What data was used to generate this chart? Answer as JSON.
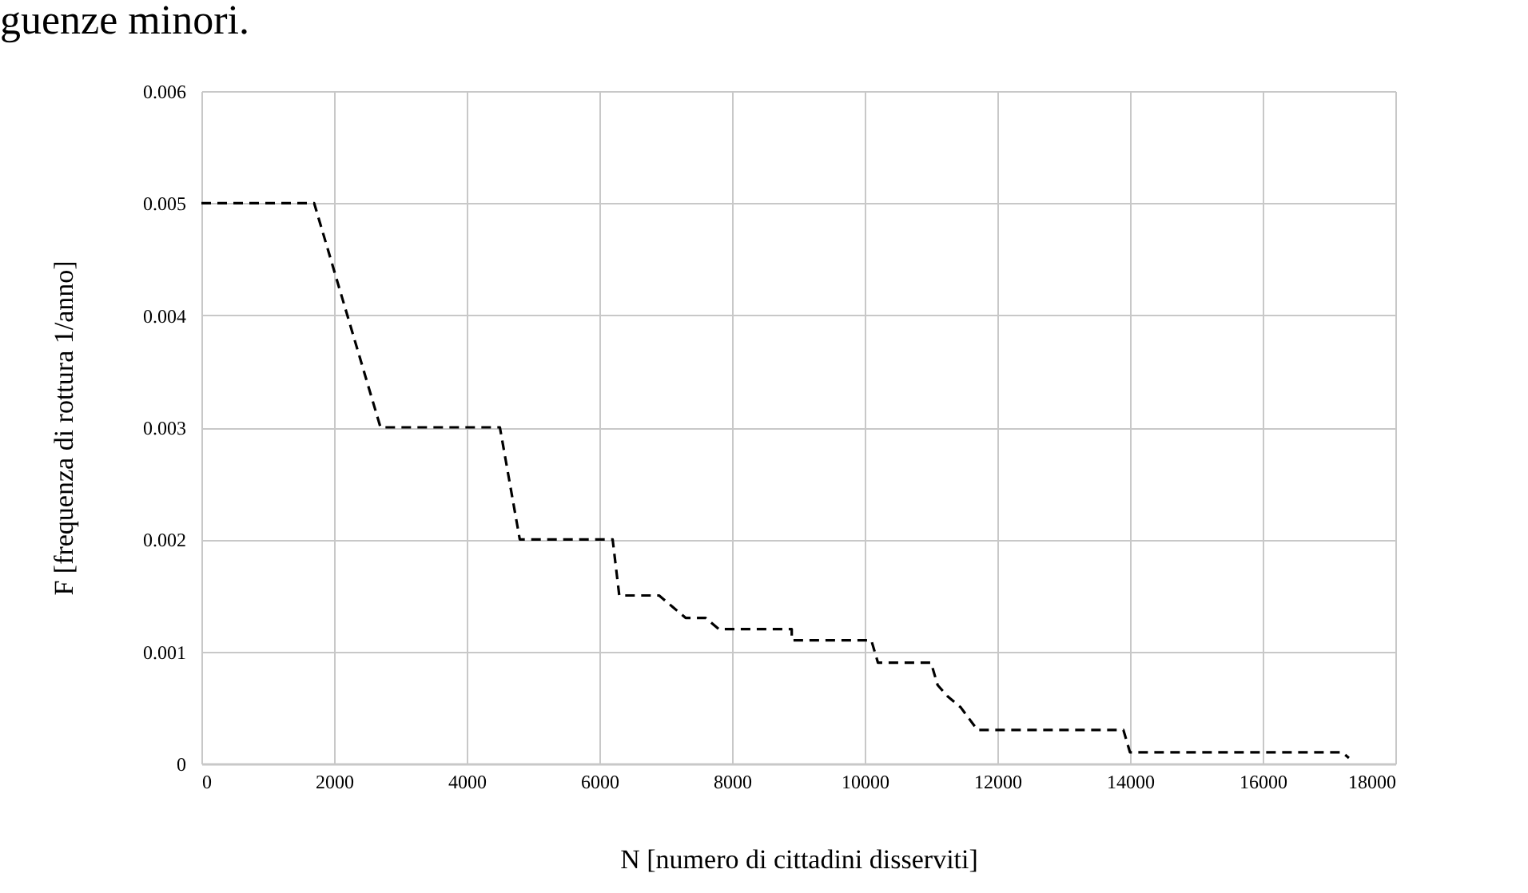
{
  "chart_data": {
    "type": "line",
    "xlabel": "N [numero di cittadini disserviti]",
    "ylabel": "F [frequenza di rottura 1/anno]",
    "annotations": [
      "guenze minori."
    ],
    "x": [
      0,
      1700,
      2700,
      4500,
      4800,
      6200,
      6300,
      6900,
      7100,
      7300,
      7600,
      7800,
      8900,
      8900,
      10100,
      10200,
      11000,
      11100,
      11250,
      11450,
      11700,
      13900,
      14000,
      17200,
      17300
    ],
    "series": [
      {
        "color": "#000000",
        "line_style": "dashed",
        "values": [
          0.005,
          0.005,
          0.003,
          0.003,
          0.002,
          0.002,
          0.0015,
          0.0015,
          0.0014,
          0.0013,
          0.0013,
          0.0012,
          0.0012,
          0.0011,
          0.0011,
          0.0009,
          0.0009,
          0.0007,
          0.0006,
          0.0005,
          0.0003,
          0.0003,
          0.0001,
          0.0001,
          5e-05
        ]
      }
    ],
    "xlim": [
      0,
      18000
    ],
    "xticks": [
      0,
      2000,
      4000,
      6000,
      8000,
      10000,
      12000,
      14000,
      16000,
      18000
    ],
    "ylim": [
      0,
      0.006
    ],
    "yticks": [
      0,
      0.001,
      0.002,
      0.003,
      0.004,
      0.005,
      0.006
    ],
    "grid": true,
    "marker": "none"
  }
}
